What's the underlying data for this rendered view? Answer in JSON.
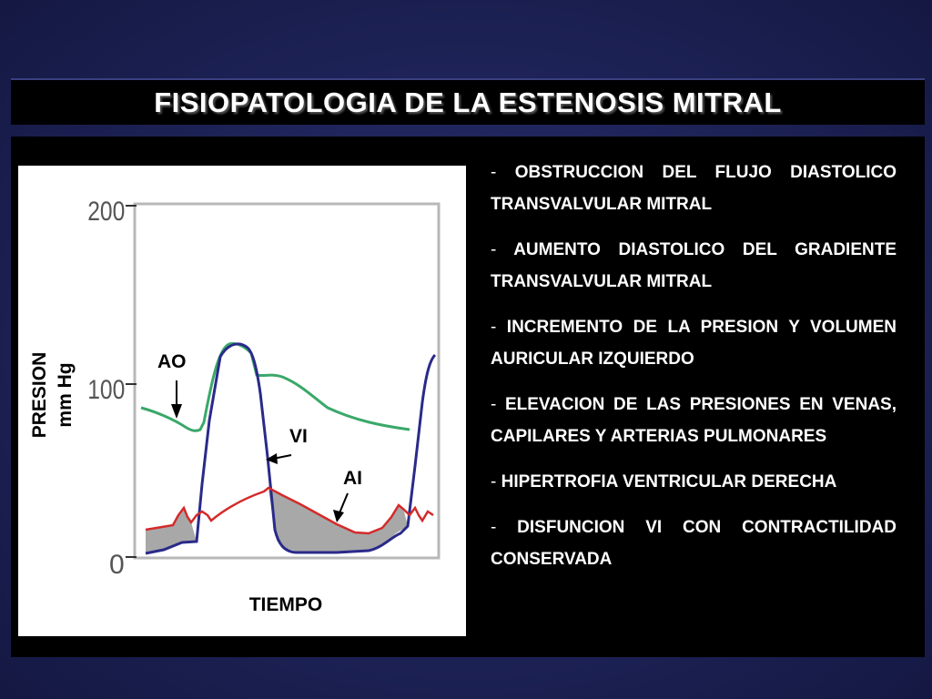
{
  "title": "FISIOPATOLOGIA DE LA ESTENOSIS MITRAL",
  "figure": {
    "y_axis_label_line1": "PRESION",
    "y_axis_label_line2": "mm Hg",
    "x_axis_label": "TIEMPO",
    "y_ticks": [
      "200",
      "100",
      "0"
    ],
    "curve_labels": {
      "aorta": "AO",
      "left_ventricle": "VI",
      "left_atrium": "AI"
    },
    "colors": {
      "aorta": "#3aa86a",
      "left_ventricle": "#2a2a8a",
      "left_atrium": "#d42a2a",
      "gradient_fill": "#a8a8a8"
    }
  },
  "bullets": [
    {
      "dash": "-",
      "text": "OBSTRUCCION DEL FLUJO DIASTOLICO TRANSVALVULAR MITRAL"
    },
    {
      "dash": "-",
      "text": "AUMENTO DIASTOLICO DEL GRADIENTE TRANSVALVULAR MITRAL"
    },
    {
      "dash": "-",
      "text": "INCREMENTO DE LA PRESION Y VOLUMEN AURICULAR IZQUIERDO"
    },
    {
      "dash": "-",
      "text": "ELEVACION DE LAS PRESIONES EN VENAS, CAPILARES Y ARTERIAS PULMONARES"
    },
    {
      "dash": "-",
      "text": "HIPERTROFIA VENTRICULAR DERECHA"
    },
    {
      "dash": "-",
      "text": "DISFUNCION VI CON CONTRACTILIDAD CONSERVADA"
    }
  ]
}
